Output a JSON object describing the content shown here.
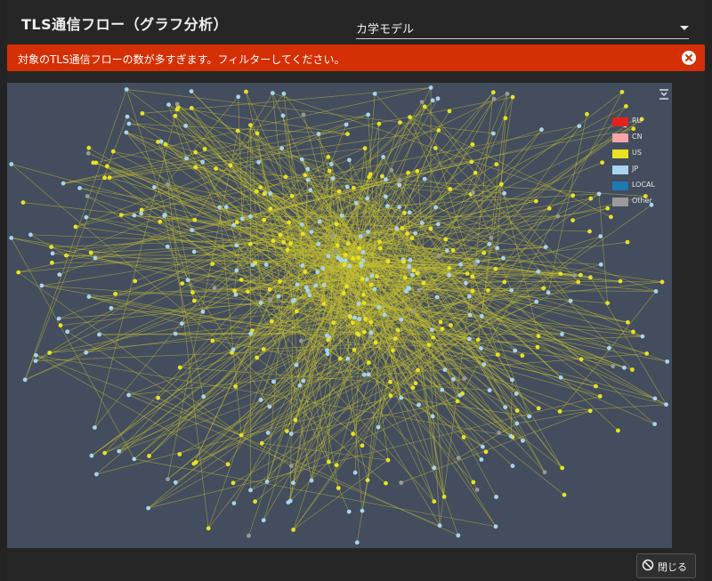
{
  "modal": {
    "title": "TLS通信フロー（グラフ分析）",
    "layout_select": {
      "value": "カ学モデル"
    },
    "alert": {
      "message": "対象のTLS通信フローの数が多すぎます。フィルターしてください。",
      "close_icon": "close-circle-icon"
    },
    "close_button": {
      "label": "閉じる",
      "icon": "ban-icon"
    }
  },
  "legend": {
    "items": [
      {
        "label": "RU",
        "color": "#e4211c"
      },
      {
        "label": "CN",
        "color": "#f7a4a8"
      },
      {
        "label": "US",
        "color": "#e8e223"
      },
      {
        "label": "JP",
        "color": "#a9d4ef"
      },
      {
        "label": "LOCAL",
        "color": "#1f77b4"
      },
      {
        "label": "Other",
        "color": "#9a9a9a"
      }
    ]
  },
  "colors": {
    "edge": "#c8c230",
    "background": "#434d5e",
    "alert": "#d42f05"
  }
}
